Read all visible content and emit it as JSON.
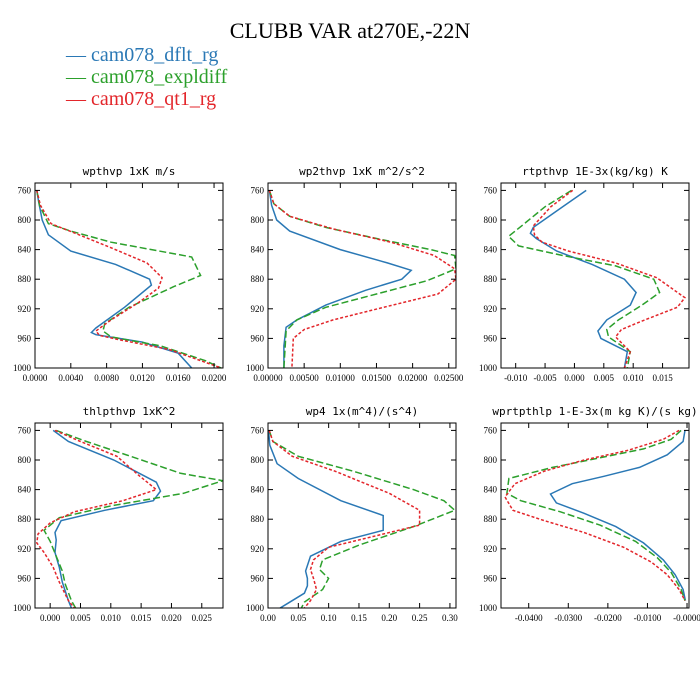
{
  "title": "CLUBB VAR at270E,-22N",
  "legend": [
    {
      "name": "cam078_dflt_rg",
      "color": "#2a78b5"
    },
    {
      "name": "cam078_expldiff",
      "color": "#2ca02c"
    },
    {
      "name": "cam078_qt1_rg",
      "color": "#e3262b"
    }
  ],
  "chart_data": [
    {
      "type": "line",
      "title": "wpthvp   1xK m/s",
      "xlim": [
        0,
        0.021
      ],
      "xticks": [
        0,
        0.004,
        0.008,
        0.012,
        0.016,
        0.02
      ],
      "xticklabels": [
        "0.0000",
        "0.0040",
        "0.0080",
        "0.0120",
        "0.0160",
        "0.0200"
      ],
      "ylim": [
        1000,
        750
      ],
      "yticks": [
        760,
        800,
        840,
        880,
        920,
        960,
        1000
      ],
      "series": [
        {
          "name": "cam078_dflt_rg",
          "color": "#2a78b5",
          "dash": "",
          "x": [
            0.0002,
            0.0004,
            0.0008,
            0.0015,
            0.004,
            0.009,
            0.0128,
            0.013,
            0.01,
            0.0068,
            0.0063,
            0.0068,
            0.012,
            0.016,
            0.0175
          ],
          "y": [
            760,
            775,
            800,
            820,
            842,
            860,
            880,
            888,
            918,
            946,
            952,
            955,
            965,
            980,
            1000
          ]
        },
        {
          "name": "cam078_expldiff",
          "color": "#2ca02c",
          "dash": "7,3",
          "x": [
            0.0002,
            0.0005,
            0.0015,
            0.004,
            0.0085,
            0.0175,
            0.0185,
            0.0155,
            0.0105,
            0.0078,
            0.0076,
            0.0085,
            0.014,
            0.019,
            0.0208
          ],
          "y": [
            760,
            780,
            805,
            815,
            830,
            850,
            875,
            890,
            918,
            940,
            950,
            958,
            970,
            990,
            1000
          ]
        },
        {
          "name": "cam078_qt1_rg",
          "color": "#e3262b",
          "dash": "3,2",
          "x": [
            0.0002,
            0.0006,
            0.0018,
            0.0045,
            0.008,
            0.0125,
            0.0142,
            0.0138,
            0.0115,
            0.0085,
            0.0068,
            0.0072,
            0.0095,
            0.015,
            0.0208
          ],
          "y": [
            760,
            780,
            805,
            818,
            835,
            858,
            878,
            892,
            912,
            935,
            950,
            956,
            962,
            975,
            1000
          ]
        }
      ]
    },
    {
      "type": "line",
      "title": "wp2thvp   1xK m^2/s^2",
      "xlim": [
        0,
        0.026
      ],
      "xticks": [
        0,
        0.005,
        0.01,
        0.015,
        0.02,
        0.025
      ],
      "xticklabels": [
        "0.00000",
        "0.00500",
        "0.01000",
        "0.01500",
        "0.02000",
        "0.02500"
      ],
      "ylim": [
        1000,
        750
      ],
      "yticks": [
        760,
        800,
        840,
        880,
        920,
        960,
        1000
      ],
      "series": [
        {
          "name": "cam078_dflt_rg",
          "color": "#2a78b5",
          "dash": "",
          "x": [
            0.0002,
            0.0005,
            0.0012,
            0.003,
            0.01,
            0.0165,
            0.0198,
            0.0185,
            0.0135,
            0.008,
            0.004,
            0.0025,
            0.0022,
            0.0022
          ],
          "y": [
            760,
            780,
            800,
            815,
            840,
            858,
            868,
            880,
            895,
            915,
            935,
            945,
            970,
            1000
          ]
        },
        {
          "name": "cam078_expldiff",
          "color": "#2ca02c",
          "dash": "7,3",
          "x": [
            0.0002,
            0.0008,
            0.003,
            0.008,
            0.015,
            0.0225,
            0.0258,
            0.026,
            0.022,
            0.015,
            0.008,
            0.004,
            0.0025,
            0.0022
          ],
          "y": [
            760,
            778,
            795,
            810,
            825,
            840,
            848,
            866,
            882,
            900,
            918,
            935,
            950,
            1000
          ]
        },
        {
          "name": "cam078_qt1_rg",
          "color": "#e3262b",
          "dash": "3,2",
          "x": [
            0.0002,
            0.0008,
            0.003,
            0.009,
            0.017,
            0.023,
            0.0258,
            0.026,
            0.0235,
            0.016,
            0.009,
            0.005,
            0.0035,
            0.0033
          ],
          "y": [
            760,
            778,
            795,
            812,
            830,
            848,
            866,
            880,
            900,
            918,
            935,
            948,
            960,
            1000
          ]
        }
      ]
    },
    {
      "type": "line",
      "title": "rtpthvp   1E-3x(kg/kg) K",
      "xlim": [
        -0.0125,
        0.0195
      ],
      "xticks": [
        -0.01,
        -0.005,
        0,
        0.005,
        0.01,
        0.015
      ],
      "xticklabels": [
        "-0.010",
        "-0.005",
        "0.000",
        "0.005",
        "0.010",
        "0.015"
      ],
      "ylim": [
        1000,
        750
      ],
      "yticks": [
        760,
        800,
        840,
        880,
        920,
        960,
        1000
      ],
      "series": [
        {
          "name": "cam078_dflt_rg",
          "color": "#2a78b5",
          "dash": "",
          "x": [
            0.002,
            -0.002,
            -0.007,
            -0.0075,
            -0.0065,
            -0.003,
            0.003,
            0.0085,
            0.0105,
            0.0095,
            0.0055,
            0.004,
            0.0045,
            0.009,
            0.0085
          ],
          "y": [
            760,
            782,
            810,
            818,
            825,
            842,
            860,
            880,
            898,
            915,
            935,
            950,
            960,
            978,
            1000
          ]
        },
        {
          "name": "cam078_expldiff",
          "color": "#2ca02c",
          "dash": "7,3",
          "x": [
            -0.0005,
            -0.005,
            -0.009,
            -0.0112,
            -0.0095,
            -0.002,
            0.007,
            0.0135,
            0.0145,
            0.0115,
            0.0075,
            0.0055,
            0.0058,
            0.0095,
            0.009
          ],
          "y": [
            760,
            782,
            808,
            822,
            835,
            848,
            862,
            880,
            898,
            915,
            935,
            948,
            958,
            978,
            1000
          ]
        },
        {
          "name": "cam078_qt1_rg",
          "color": "#e3262b",
          "dash": "3,2",
          "x": [
            -0.0003,
            -0.004,
            -0.007,
            -0.0068,
            -0.0055,
            -0.001,
            0.007,
            0.014,
            0.0188,
            0.0175,
            0.012,
            0.008,
            0.007,
            0.0095,
            0.0085
          ],
          "y": [
            760,
            782,
            808,
            820,
            830,
            842,
            858,
            878,
            905,
            918,
            935,
            948,
            958,
            978,
            1000
          ]
        }
      ]
    },
    {
      "type": "line",
      "title": "thlpthvp   1xK^2",
      "xlim": [
        -0.0025,
        0.0285
      ],
      "xticks": [
        0,
        0.005,
        0.01,
        0.015,
        0.02,
        0.025
      ],
      "xticklabels": [
        "0.000",
        "0.005",
        "0.010",
        "0.015",
        "0.020",
        "0.025"
      ],
      "ylim": [
        1000,
        750
      ],
      "yticks": [
        760,
        800,
        840,
        880,
        920,
        960,
        1000
      ],
      "series": [
        {
          "name": "cam078_dflt_rg",
          "color": "#2a78b5",
          "dash": "",
          "x": [
            0.0005,
            0.003,
            0.0105,
            0.0175,
            0.0182,
            0.017,
            0.009,
            0.0018,
            0.0008,
            0.001,
            0.0008,
            0.0015,
            0.002,
            0.003,
            0.0035
          ],
          "y": [
            760,
            775,
            800,
            830,
            842,
            855,
            868,
            882,
            898,
            908,
            925,
            945,
            965,
            990,
            1000
          ]
        },
        {
          "name": "cam078_expldiff",
          "color": "#2ca02c",
          "dash": "7,3",
          "x": [
            0.001,
            0.006,
            0.014,
            0.0215,
            0.0285,
            0.022,
            0.01,
            0.0015,
            -0.001,
            0,
            0.001,
            0.002,
            0.0025,
            0.0035,
            0.0042
          ],
          "y": [
            760,
            775,
            797,
            818,
            828,
            845,
            862,
            878,
            895,
            910,
            930,
            950,
            968,
            990,
            1000
          ]
        },
        {
          "name": "cam078_qt1_rg",
          "color": "#e3262b",
          "dash": "3,2",
          "x": [
            0.0008,
            0.005,
            0.011,
            0.0145,
            0.0175,
            0.012,
            0.004,
            0,
            -0.002,
            -0.0022,
            -0.001,
            0.0005,
            0.0015,
            0.003,
            0.004
          ],
          "y": [
            760,
            775,
            795,
            820,
            840,
            855,
            870,
            885,
            900,
            912,
            925,
            945,
            965,
            990,
            1000
          ]
        }
      ]
    },
    {
      "type": "line",
      "title": "wp4   1x(m^4)/(s^4)",
      "xlim": [
        0,
        0.31
      ],
      "xticks": [
        0,
        0.05,
        0.1,
        0.15,
        0.2,
        0.25,
        0.3
      ],
      "xticklabels": [
        "0.00",
        "0.05",
        "0.10",
        "0.15",
        "0.20",
        "0.25",
        "0.30"
      ],
      "ylim": [
        1000,
        750
      ],
      "yticks": [
        760,
        800,
        840,
        880,
        920,
        960,
        1000
      ],
      "series": [
        {
          "name": "cam078_dflt_rg",
          "color": "#2a78b5",
          "dash": "",
          "x": [
            0.001,
            0.003,
            0.015,
            0.05,
            0.12,
            0.19,
            0.19,
            0.12,
            0.07,
            0.062,
            0.065,
            0.065,
            0.06,
            0.03,
            0.02
          ],
          "y": [
            760,
            780,
            805,
            825,
            855,
            875,
            895,
            910,
            930,
            950,
            960,
            970,
            980,
            995,
            1000
          ]
        },
        {
          "name": "cam078_expldiff",
          "color": "#2ca02c",
          "dash": "7,3",
          "x": [
            0.002,
            0.008,
            0.05,
            0.14,
            0.24,
            0.29,
            0.308,
            0.24,
            0.15,
            0.09,
            0.085,
            0.1,
            0.09,
            0.06,
            0.055
          ],
          "y": [
            760,
            775,
            795,
            815,
            840,
            855,
            868,
            890,
            915,
            935,
            948,
            960,
            975,
            992,
            1000
          ]
        },
        {
          "name": "cam078_qt1_rg",
          "color": "#e3262b",
          "dash": "3,2",
          "x": [
            0.002,
            0.008,
            0.04,
            0.11,
            0.2,
            0.25,
            0.25,
            0.18,
            0.1,
            0.075,
            0.07,
            0.075,
            0.08,
            0.07,
            0.06
          ],
          "y": [
            760,
            775,
            795,
            815,
            845,
            868,
            888,
            902,
            918,
            935,
            948,
            960,
            975,
            990,
            1000
          ]
        }
      ]
    },
    {
      "type": "line",
      "title": "wprtpthlp   1-E-3x(m kg K)/(s kg)",
      "xlim": [
        -0.047,
        0.0005
      ],
      "xticks": [
        -0.04,
        -0.03,
        -0.02,
        -0.01,
        0
      ],
      "xticklabels": [
        "-0.0400",
        "-0.0300",
        "-0.0200",
        "-0.0100",
        "-0.0000"
      ],
      "ylim": [
        1000,
        750
      ],
      "yticks": [
        760,
        800,
        840,
        880,
        920,
        960,
        1000
      ],
      "series": [
        {
          "name": "cam078_dflt_rg",
          "color": "#2a78b5",
          "dash": "",
          "x": [
            -0.0005,
            -0.001,
            -0.005,
            -0.012,
            -0.021,
            -0.029,
            -0.0345,
            -0.033,
            -0.026,
            -0.018,
            -0.011,
            -0.006,
            -0.003,
            -0.001,
            -0.0004
          ],
          "y": [
            760,
            775,
            793,
            810,
            822,
            832,
            846,
            858,
            872,
            890,
            912,
            935,
            955,
            975,
            990
          ]
        },
        {
          "name": "cam078_expldiff",
          "color": "#2ca02c",
          "dash": "7,3",
          "x": [
            -0.0015,
            -0.004,
            -0.011,
            -0.022,
            -0.034,
            -0.045,
            -0.0455,
            -0.042,
            -0.032,
            -0.022,
            -0.013,
            -0.0075,
            -0.004,
            -0.0015,
            -0.0005
          ],
          "y": [
            760,
            772,
            785,
            797,
            810,
            825,
            845,
            855,
            870,
            888,
            910,
            932,
            952,
            975,
            990
          ]
        },
        {
          "name": "cam078_qt1_rg",
          "color": "#e3262b",
          "dash": "3,2",
          "x": [
            -0.002,
            -0.006,
            -0.015,
            -0.026,
            -0.036,
            -0.0435,
            -0.046,
            -0.044,
            -0.036,
            -0.026,
            -0.016,
            -0.009,
            -0.005,
            -0.002,
            -0.0005
          ],
          "y": [
            760,
            772,
            787,
            800,
            815,
            832,
            850,
            868,
            882,
            898,
            918,
            938,
            955,
            975,
            990
          ]
        }
      ]
    }
  ]
}
